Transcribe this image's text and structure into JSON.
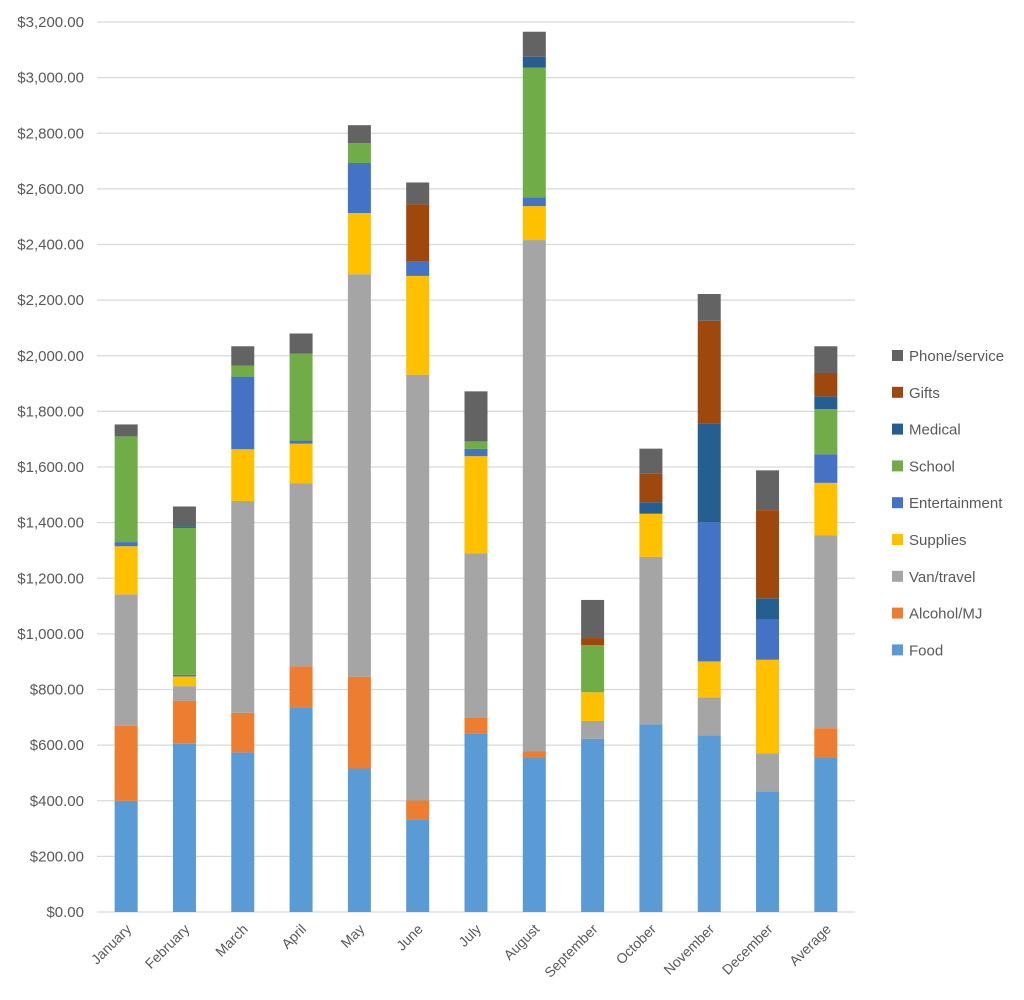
{
  "chart_data": {
    "type": "bar",
    "stacked": true,
    "title": "",
    "xlabel": "",
    "ylabel": "",
    "ylim": [
      0,
      3200
    ],
    "y_ticks": [
      "$0.00",
      "$200.00",
      "$400.00",
      "$600.00",
      "$800.00",
      "$1,000.00",
      "$1,200.00",
      "$1,400.00",
      "$1,600.00",
      "$1,800.00",
      "$2,000.00",
      "$2,200.00",
      "$2,400.00",
      "$2,600.00",
      "$2,800.00",
      "$3,000.00",
      "$3,200.00"
    ],
    "grid": true,
    "legend_position": "right",
    "categories": [
      "January",
      "February",
      "March",
      "April",
      "May",
      "June",
      "July",
      "August",
      "September",
      "October",
      "November",
      "December",
      "Average"
    ],
    "series": [
      {
        "name": "Food",
        "color": "#5B9BD5",
        "values": [
          400,
          605,
          574,
          735,
          516,
          333,
          643,
          557,
          623,
          674,
          635,
          434,
          557
        ]
      },
      {
        "name": "Alcohol/MJ",
        "color": "#ED7D31",
        "values": [
          270,
          155,
          142,
          148,
          330,
          68,
          57,
          20,
          0,
          0,
          0,
          0,
          104
        ]
      },
      {
        "name": "Van/travel",
        "color": "#A5A5A5",
        "values": [
          472,
          52,
          762,
          659,
          1447,
          1531,
          590,
          1839,
          64,
          603,
          137,
          137,
          694
        ]
      },
      {
        "name": "Supplies",
        "color": "#FFC000",
        "values": [
          173,
          35,
          186,
          142,
          220,
          355,
          349,
          122,
          103,
          155,
          129,
          336,
          188
        ]
      },
      {
        "name": "Entertainment",
        "color": "#4472C4",
        "values": [
          15,
          6,
          261,
          11,
          180,
          51,
          26,
          32,
          0,
          0,
          500,
          144,
          103
        ]
      },
      {
        "name": "School",
        "color": "#70AD47",
        "values": [
          380,
          528,
          39,
          313,
          71,
          0,
          27,
          466,
          170,
          0,
          0,
          0,
          162
        ]
      },
      {
        "name": "Medical",
        "color": "#255E91",
        "values": [
          0,
          6,
          0,
          0,
          0,
          0,
          0,
          39,
          0,
          41,
          356,
          77,
          46
        ]
      },
      {
        "name": "Gifts",
        "color": "#9E480E",
        "values": [
          0,
          0,
          0,
          0,
          0,
          207,
          0,
          0,
          25,
          103,
          369,
          317,
          84
        ]
      },
      {
        "name": "Phone/service",
        "color": "#636363",
        "values": [
          43,
          71,
          70,
          72,
          65,
          78,
          180,
          90,
          137,
          90,
          96,
          143,
          96
        ]
      }
    ]
  }
}
